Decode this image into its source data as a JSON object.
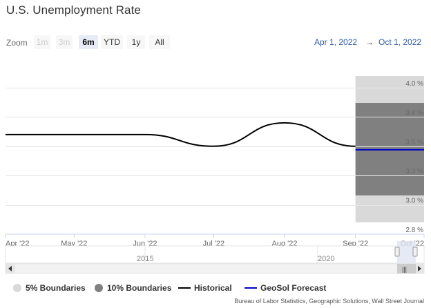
{
  "title": "U.S. Unemployment Rate",
  "zoom": {
    "label": "Zoom",
    "buttons": [
      {
        "label": "1m",
        "state": "disabled"
      },
      {
        "label": "3m",
        "state": "disabled"
      },
      {
        "label": "6m",
        "state": "active"
      },
      {
        "label": "YTD",
        "state": "normal"
      },
      {
        "label": "1y",
        "state": "normal"
      },
      {
        "label": "All",
        "state": "normal"
      }
    ]
  },
  "range": {
    "from": "Apr 1, 2022",
    "arrow": "→",
    "to": "Oct 1, 2022"
  },
  "navigator": {
    "labels": [
      "2015",
      "2020"
    ],
    "scroll_glyph": "|||"
  },
  "legend": [
    {
      "label": "5% Boundaries",
      "color": "#d9d9d9",
      "symbol": "circle"
    },
    {
      "label": "10% Boundaries",
      "color": "#808080",
      "symbol": "circle"
    },
    {
      "label": "Historical",
      "color": "#000000",
      "symbol": "line"
    },
    {
      "label": "GeoSol Forecast",
      "color": "#0000cc",
      "symbol": "line"
    }
  ],
  "source": "Bureau of Labor Statistics, Geographic Solutions, Wall Street Journal",
  "chart_data": {
    "type": "line",
    "title": "U.S. Unemployment Rate",
    "x_tick_labels": [
      "Apr '22",
      "May '22",
      "Jun '22",
      "Jul '22",
      "Aug '22",
      "Sep '22",
      "Oct '22"
    ],
    "y_tick_labels": [
      "2.8 %",
      "3.0 %",
      "3.3 %",
      "3.5 %",
      "3.8 %",
      "4.0 %"
    ],
    "y_ticks": [
      2.75,
      3.0,
      3.25,
      3.5,
      3.75,
      4.0
    ],
    "ylim": [
      2.75,
      4.1
    ],
    "xlim": [
      "2022-04-01",
      "2022-10-01"
    ],
    "grid": true,
    "series": [
      {
        "name": "Historical",
        "color": "#000000",
        "x": [
          "2022-04-01",
          "2022-05-01",
          "2022-06-01",
          "2022-07-01",
          "2022-08-01",
          "2022-09-01"
        ],
        "y": [
          3.6,
          3.6,
          3.6,
          3.5,
          3.7,
          3.5
        ]
      },
      {
        "name": "GeoSol Forecast",
        "color": "#0000cc",
        "x": [
          "2022-09-01",
          "2022-10-01"
        ],
        "y": [
          3.47,
          3.47
        ]
      }
    ],
    "bands": [
      {
        "name": "5% Boundaries",
        "color": "#d9d9d9",
        "x": [
          "2022-09-01",
          "2022-10-01"
        ],
        "low": 2.85,
        "high": 4.1
      },
      {
        "name": "10% Boundaries",
        "color": "#808080",
        "x": [
          "2022-09-01",
          "2022-10-01"
        ],
        "low": 3.08,
        "high": 3.87
      }
    ]
  }
}
